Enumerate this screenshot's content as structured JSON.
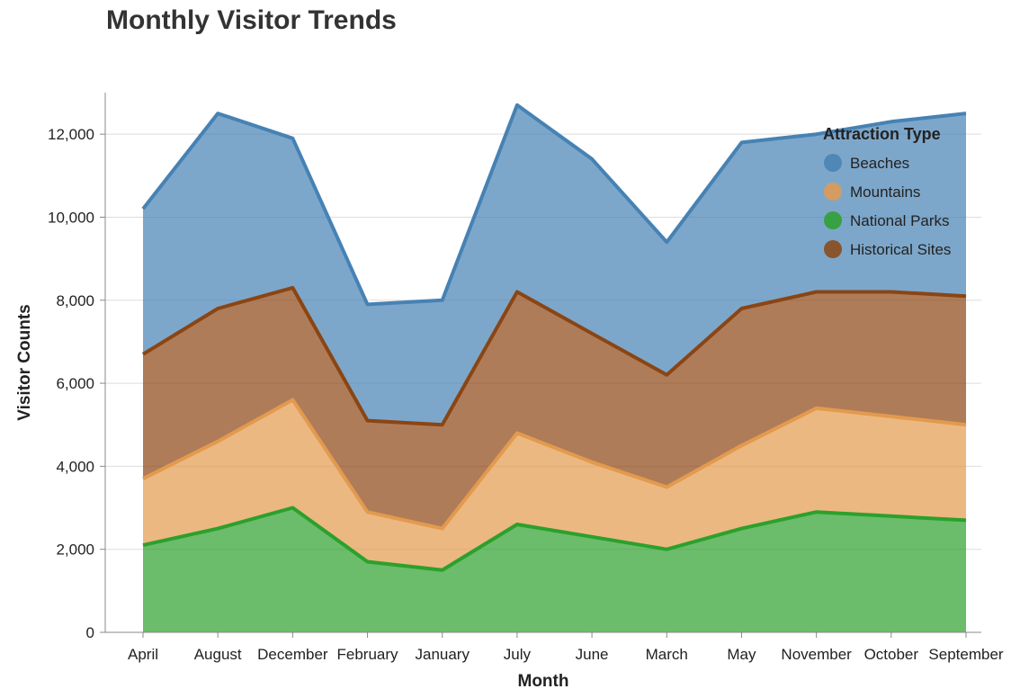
{
  "chart_data": {
    "type": "area",
    "stacked": true,
    "title": "Monthly Visitor Trends",
    "xlabel": "Month",
    "ylabel": "Visitor Counts",
    "ylim": [
      0,
      13000
    ],
    "yticks": [
      0,
      2000,
      4000,
      6000,
      8000,
      10000,
      12000
    ],
    "grid": true,
    "legend_title": "Attraction Type",
    "legend_position": "top-right",
    "categories": [
      "April",
      "August",
      "December",
      "February",
      "January",
      "July",
      "June",
      "March",
      "May",
      "November",
      "October",
      "September"
    ],
    "series": [
      {
        "name": "National Parks",
        "color": "#2ca02c",
        "values": [
          2100,
          2500,
          3000,
          1700,
          1500,
          2600,
          2300,
          2000,
          2500,
          2900,
          2800,
          2700
        ]
      },
      {
        "name": "Mountains",
        "color": "#e39a4d",
        "values": [
          1600,
          2100,
          2600,
          1200,
          1000,
          2200,
          1800,
          1500,
          2000,
          2500,
          2400,
          2300
        ]
      },
      {
        "name": "Historical Sites",
        "color": "#8b4513",
        "values": [
          3000,
          3200,
          2700,
          2200,
          2500,
          3400,
          3100,
          2700,
          3300,
          2800,
          3000,
          3100
        ]
      },
      {
        "name": "Beaches",
        "color": "#4682b4",
        "values": [
          3500,
          4700,
          3600,
          2800,
          3000,
          4500,
          4200,
          3200,
          4000,
          3800,
          4100,
          4400
        ]
      }
    ],
    "legend_order": [
      "Beaches",
      "Mountains",
      "National Parks",
      "Historical Sites"
    ]
  }
}
